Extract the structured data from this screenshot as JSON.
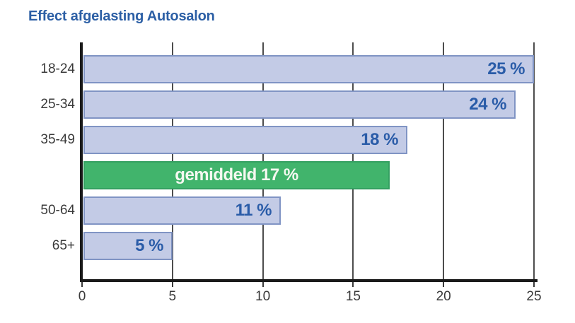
{
  "title": "Effect afgelasting Autosalon",
  "chart_data": {
    "type": "bar",
    "orientation": "horizontal",
    "title": "Effect afgelasting Autosalon",
    "categories": [
      "18-24",
      "25-34",
      "35-49",
      "",
      "50-64",
      "65+"
    ],
    "values": [
      25,
      24,
      18,
      17,
      11,
      5
    ],
    "bar_labels": [
      "25 %",
      "24 %",
      "18 %",
      "gemiddeld 17 %",
      "11 %",
      "5 %"
    ],
    "highlight_index": 3,
    "highlight_label_position": "center",
    "xlabel": "",
    "ylabel": "",
    "xlim": [
      0,
      25
    ],
    "x_ticks": [
      "0",
      "5",
      "10",
      "15",
      "20",
      "25"
    ],
    "grid": "vertical",
    "legend": "none",
    "colors": {
      "title_text": "#2c5fa5",
      "bar_fill": "#c3cbe6",
      "bar_border": "#8094c4",
      "highlight_fill": "#41b46c",
      "highlight_border": "#34a061",
      "value_label_text": "#2a5ca8",
      "highlight_label_text": "#f4f8f0",
      "axis_line": "#1a1a1a",
      "gridline": "#4d4d4d",
      "tick_text": "#3a3a3a"
    }
  }
}
